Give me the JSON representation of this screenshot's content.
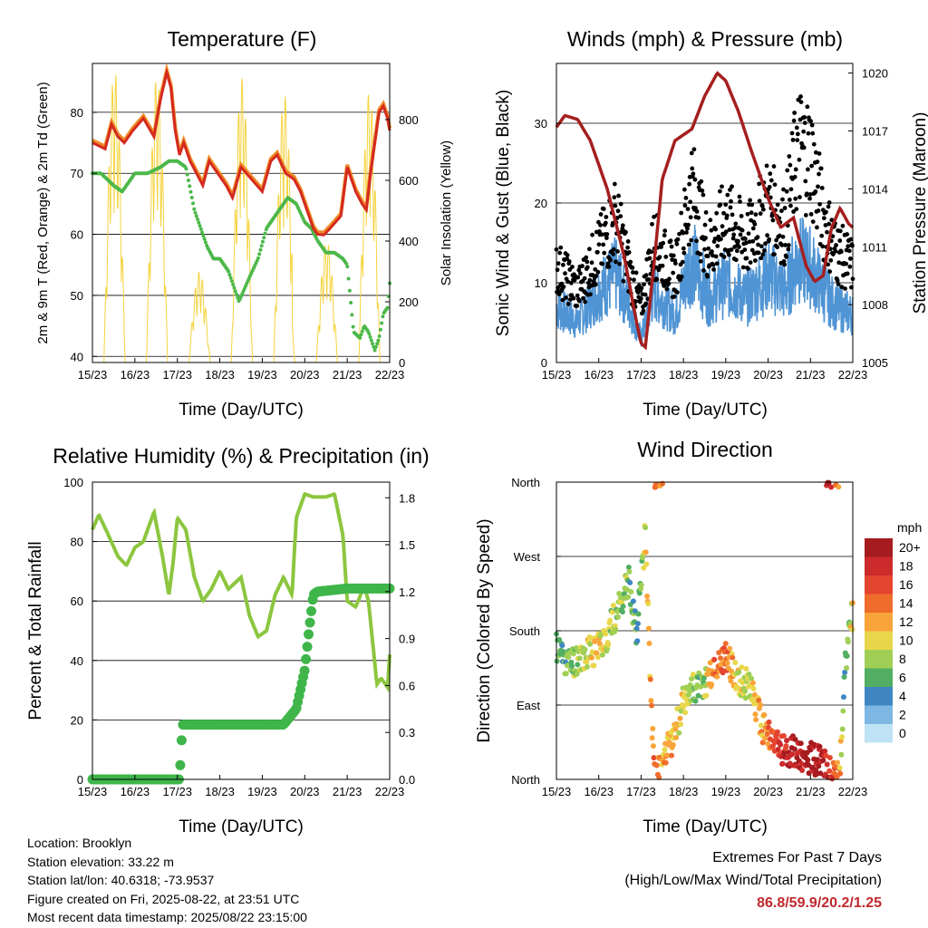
{
  "figure": {
    "background": "#ffffff",
    "colors": {
      "temp_2m": "#d42a20",
      "temp_9m": "#f08a24",
      "dewpoint": "#4cb84a",
      "solar": "#f5d33f",
      "wind": "#4f94d4",
      "gust": "#000000",
      "pressure": "#a51f1f",
      "rh": "#8cc63f",
      "precip": "#3fb54a"
    }
  },
  "info": {
    "location": "Location: Brooklyn",
    "elevation": "Station elevation: 33.22 m",
    "latlon": "Station lat/lon: 40.6318; -73.9537",
    "created": "Figure created on Fri, 2025-08-22, at 23:51 UTC",
    "timestamp": "Most recent data timestamp: 2025/08/22 23:15:00"
  },
  "extremes": {
    "title": "Extremes For Past 7 Days",
    "subtitle": "(High/Low/Max Wind/Total Precipitation)",
    "values": "86.8/59.9/20.2/1.25"
  },
  "chart_data": [
    {
      "type": "line",
      "title": "Temperature (F)",
      "xlabel": "Time (Day/UTC)",
      "ylabel": "2m & 9m T (Red, Orange) & 2m Td (Green)",
      "ylabel_right": "Solar Insolation (Yellow)",
      "x_ticks": [
        "15/23",
        "16/23",
        "17/23",
        "18/23",
        "19/23",
        "20/23",
        "21/23",
        "22/23"
      ],
      "xlim": [
        0,
        7
      ],
      "ylim": [
        39,
        88
      ],
      "y_ticks": [
        40,
        50,
        60,
        70,
        80
      ],
      "y2lim": [
        0,
        985
      ],
      "y2_ticks": [
        0,
        200,
        400,
        600,
        800
      ],
      "grid": "horizontal",
      "series": [
        {
          "key": "temp",
          "axis": "left",
          "x": [
            0,
            0.3,
            0.45,
            0.6,
            0.75,
            0.95,
            1.2,
            1.45,
            1.6,
            1.75,
            1.85,
            1.95,
            2.05,
            2.15,
            2.3,
            2.45,
            2.6,
            2.75,
            2.95,
            3.15,
            3.3,
            3.5,
            3.75,
            4.0,
            4.2,
            4.35,
            4.55,
            4.75,
            4.9,
            5.0,
            5.1,
            5.2,
            5.3,
            5.45,
            5.6,
            5.85,
            6.0,
            6.2,
            6.35,
            6.45,
            6.55,
            6.65,
            6.75,
            6.85,
            6.95,
            7.0
          ],
          "values": [
            75,
            74,
            78,
            76,
            75,
            77,
            79,
            76,
            82,
            86.5,
            84,
            77,
            73,
            75,
            72,
            70,
            68,
            72,
            70,
            68,
            66,
            71,
            69,
            67,
            72,
            73,
            70,
            69,
            67,
            65,
            63,
            61,
            60,
            59.9,
            61,
            63,
            71,
            67,
            65,
            64,
            70,
            75,
            80,
            81,
            79,
            77
          ]
        },
        {
          "key": "dewpoint",
          "axis": "left",
          "x": [
            0,
            0.2,
            0.5,
            0.7,
            1.0,
            1.3,
            1.6,
            1.8,
            2.0,
            2.2,
            2.4,
            2.55,
            2.7,
            2.85,
            3.0,
            3.2,
            3.45,
            3.7,
            3.9,
            4.1,
            4.4,
            4.6,
            4.8,
            5.0,
            5.15,
            5.3,
            5.5,
            5.7,
            5.9,
            6.0,
            6.15,
            6.3,
            6.4,
            6.5,
            6.65,
            6.75,
            6.85,
            6.95,
            7.0
          ],
          "values": [
            70,
            70,
            68,
            67,
            70,
            70,
            71,
            72,
            72,
            71,
            64,
            61,
            58,
            56,
            56,
            54,
            49,
            53,
            56,
            61,
            64,
            66,
            65,
            62,
            61,
            59,
            57,
            57,
            56,
            55,
            44,
            43,
            45,
            44,
            41,
            43,
            47,
            48,
            52
          ]
        },
        {
          "key": "solar",
          "axis": "right",
          "peaks": [
            [
              0.6,
              965
            ],
            [
              1.75,
              945
            ],
            [
              3.5,
              940
            ],
            [
              4.2,
              885
            ],
            [
              5.5,
              400
            ],
            [
              6.75,
              895
            ]
          ]
        }
      ]
    },
    {
      "type": "scatter",
      "title": "Winds (mph) & Pressure (mb)",
      "xlabel": "Time (Day/UTC)",
      "ylabel": "Sonic Wind & Gust (Blue, Black)",
      "ylabel_right": "Station Pressure (Maroon)",
      "x_ticks": [
        "15/23",
        "16/23",
        "17/23",
        "18/23",
        "19/23",
        "20/23",
        "21/23",
        "22/23"
      ],
      "xlim": [
        0,
        7
      ],
      "ylim": [
        0,
        37.5
      ],
      "y_ticks": [
        0,
        10,
        20,
        30
      ],
      "y2lim": [
        1005,
        1020.5
      ],
      "y2_ticks": [
        1005,
        1008,
        1011,
        1014,
        1017,
        1020
      ],
      "grid": "horizontal",
      "series": [
        {
          "key": "gust",
          "x": [
            0,
            0.5,
            1.0,
            1.4,
            1.8,
            2.0,
            2.3,
            2.8,
            3.2,
            3.6,
            4.0,
            4.5,
            5.0,
            5.4,
            5.7,
            6.0,
            6.3,
            6.6,
            7.0
          ],
          "values": [
            12,
            9,
            14,
            18,
            10,
            7,
            15,
            11,
            22,
            14,
            18,
            15,
            20,
            17,
            27,
            26,
            18,
            14,
            12
          ]
        },
        {
          "key": "wind",
          "x": [
            0,
            0.5,
            1.0,
            1.4,
            1.8,
            2.0,
            2.3,
            2.8,
            3.2,
            3.6,
            4.0,
            4.5,
            5.0,
            5.4,
            5.7,
            6.0,
            6.3,
            6.6,
            7.0
          ],
          "values": [
            7,
            5,
            9,
            11,
            6,
            3,
            9,
            6,
            13,
            8,
            10,
            8,
            11,
            9,
            13,
            12,
            9,
            7,
            6
          ]
        },
        {
          "key": "pressure",
          "x": [
            0,
            0.2,
            0.5,
            0.8,
            1.2,
            1.6,
            1.9,
            2.0,
            2.1,
            2.3,
            2.5,
            2.8,
            3.2,
            3.5,
            3.8,
            4.0,
            4.3,
            4.6,
            5.0,
            5.3,
            5.6,
            5.9,
            6.1,
            6.3,
            6.5,
            6.7,
            6.9,
            7.0
          ],
          "values": [
            1017.2,
            1017.8,
            1017.6,
            1016.5,
            1014.0,
            1010.5,
            1007.0,
            1006.0,
            1005.8,
            1010.0,
            1014.5,
            1016.5,
            1017.1,
            1018.8,
            1020.0,
            1019.6,
            1018.0,
            1016.0,
            1013.5,
            1012.0,
            1012.5,
            1010.0,
            1009.2,
            1009.5,
            1012.0,
            1013.0,
            1012.2,
            1012.0
          ]
        }
      ]
    },
    {
      "type": "line",
      "title": "Relative Humidity (%) & Precipitation (in)",
      "xlabel": "Time (Day/UTC)",
      "ylabel": "Percent & Total Rainfall",
      "x_ticks": [
        "15/23",
        "16/23",
        "17/23",
        "18/23",
        "19/23",
        "20/23",
        "21/23",
        "22/23"
      ],
      "xlim": [
        0,
        7
      ],
      "ylim": [
        0,
        100
      ],
      "y_ticks": [
        0,
        20,
        40,
        60,
        80,
        100
      ],
      "y2lim": [
        0,
        1.9
      ],
      "y2_ticks": [
        "0.0",
        "0.3",
        "0.6",
        "0.9",
        "1.2",
        "1.5",
        "1.8"
      ],
      "grid": "horizontal",
      "series": [
        {
          "key": "rh",
          "x": [
            0,
            0.15,
            0.35,
            0.6,
            0.8,
            1.0,
            1.2,
            1.45,
            1.65,
            1.8,
            1.9,
            2.0,
            2.2,
            2.4,
            2.6,
            2.8,
            3.0,
            3.2,
            3.5,
            3.7,
            3.9,
            4.1,
            4.3,
            4.5,
            4.7,
            4.8,
            5.0,
            5.2,
            5.5,
            5.7,
            5.9,
            6.0,
            6.2,
            6.4,
            6.5,
            6.7,
            6.8,
            6.95,
            7.0
          ],
          "values": [
            84,
            89,
            83,
            75,
            72,
            78,
            80,
            90,
            75,
            62,
            73,
            88,
            84,
            68,
            60,
            64,
            70,
            64,
            68,
            55,
            48,
            50,
            62,
            68,
            62,
            88,
            96,
            95,
            95,
            96,
            82,
            60,
            58,
            65,
            60,
            32,
            34,
            31,
            42
          ]
        },
        {
          "key": "precip",
          "x": [
            0,
            1.0,
            2.05,
            2.1,
            2.12,
            4.5,
            4.8,
            5.0,
            5.1,
            5.2,
            5.3,
            6.0,
            6.5,
            7.0
          ],
          "values": [
            0,
            0,
            0,
            0.25,
            0.35,
            0.35,
            0.45,
            0.7,
            0.95,
            1.18,
            1.2,
            1.22,
            1.22,
            1.22
          ]
        }
      ]
    },
    {
      "type": "scatter",
      "title": "Wind Direction",
      "xlabel": "Time (Day/UTC)",
      "ylabel": "Direction (Colored By Speed)",
      "x_ticks": [
        "15/23",
        "16/23",
        "17/23",
        "18/23",
        "19/23",
        "20/23",
        "21/23",
        "22/23"
      ],
      "y_ticks": [
        "North",
        "East",
        "South",
        "West",
        "North"
      ],
      "xlim": [
        0,
        7
      ],
      "ylim": [
        0,
        360
      ],
      "grid": "horizontal",
      "colorbar": {
        "unit": "mph",
        "labels": [
          "20+",
          "18",
          "16",
          "14",
          "12",
          "10",
          "8",
          "6",
          "4",
          "2",
          "0"
        ],
        "colors": [
          "#a51b1f",
          "#cc2a2b",
          "#e4452f",
          "#f06c2c",
          "#f9a43a",
          "#e8d74a",
          "#9fcf55",
          "#52ae62",
          "#3f86c2",
          "#7db7e2",
          "#bfe3f5"
        ]
      },
      "series": [
        {
          "key": "direction",
          "x": [
            0,
            0.3,
            0.6,
            0.9,
            1.2,
            1.5,
            1.7,
            1.9,
            2.1,
            2.3,
            2.5,
            2.8,
            3.1,
            3.4,
            3.7,
            4.0,
            4.3,
            4.6,
            4.9,
            5.2,
            5.5,
            5.8,
            6.1,
            6.4,
            6.7,
            6.8,
            6.9,
            7.0
          ],
          "values": [
            160,
            140,
            150,
            155,
            175,
            210,
            240,
            180,
            300,
            10,
            15,
            60,
            110,
            110,
            130,
            150,
            120,
            110,
            60,
            40,
            35,
            30,
            25,
            15,
            10,
            120,
            180,
            200
          ],
          "speeds": [
            6,
            7,
            8,
            11,
            9,
            8,
            7,
            5,
            10,
            14,
            12,
            11,
            9,
            6,
            13,
            14,
            10,
            9,
            13,
            16,
            19,
            20,
            20,
            18,
            12,
            4,
            8,
            10
          ]
        }
      ]
    }
  ]
}
